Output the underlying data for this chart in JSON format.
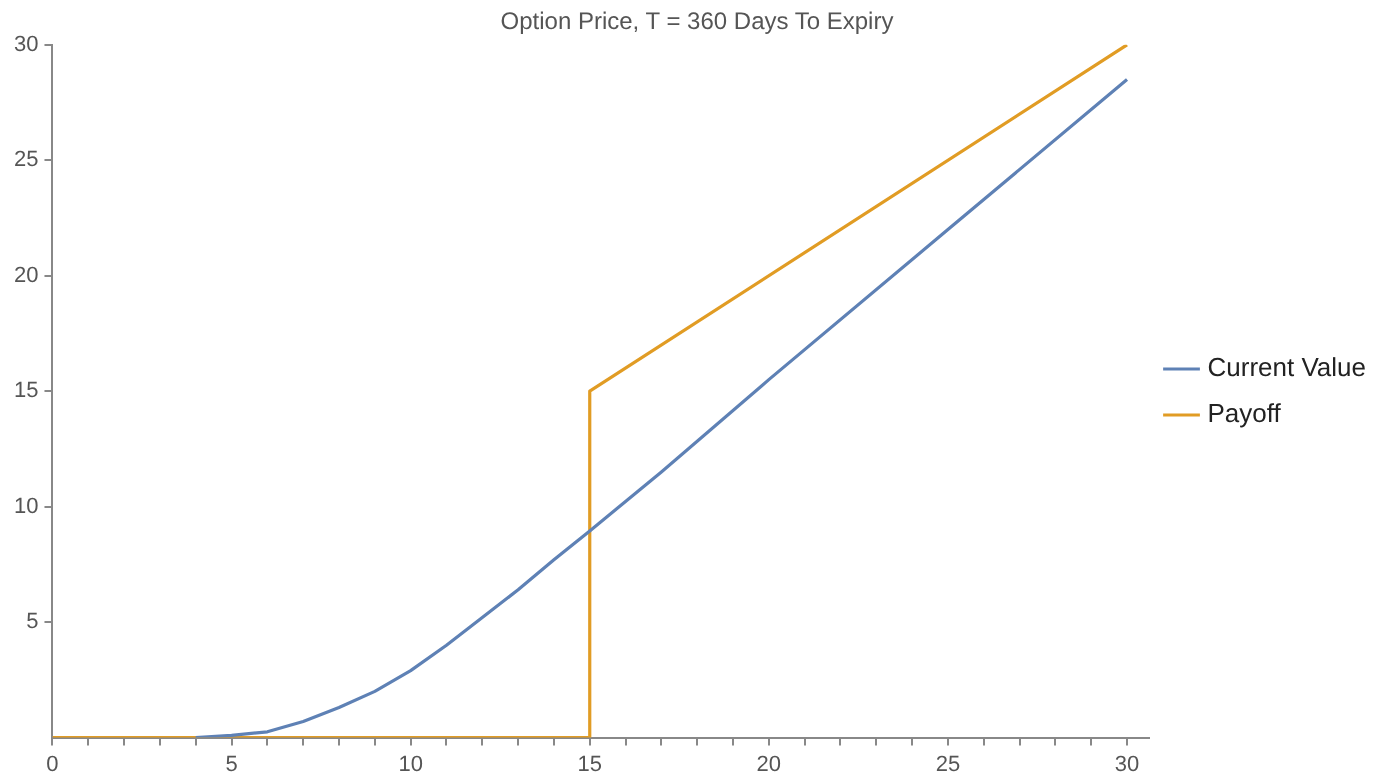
{
  "chart_data": {
    "type": "line",
    "title": "Option Price, T = 360 Days To Expiry",
    "series": [
      {
        "name": "Current Value",
        "color": "#5e81b5",
        "x": [
          4,
          5,
          6,
          7,
          8,
          9,
          10,
          11,
          12,
          13,
          14,
          15,
          17,
          20,
          25,
          30
        ],
        "values": [
          0,
          0.1,
          0.25,
          0.7,
          1.3,
          2.0,
          2.9,
          4.0,
          5.2,
          6.4,
          7.7,
          8.95,
          11.5,
          15.5,
          22.0,
          28.5
        ]
      },
      {
        "name": "Payoff",
        "color": "#e19c24",
        "x": [
          0,
          15,
          15,
          30
        ],
        "values": [
          0,
          0,
          15,
          30
        ]
      }
    ],
    "xlim": [
      0,
      30.6
    ],
    "ylim": [
      0,
      30
    ],
    "xticks": [
      0,
      {
        "value": 1,
        "label": null
      },
      {
        "value": 2,
        "label": null
      },
      {
        "value": 3,
        "label": null
      },
      {
        "value": 4,
        "label": null
      },
      5,
      {
        "value": 6,
        "label": null
      },
      {
        "value": 7,
        "label": null
      },
      {
        "value": 8,
        "label": null
      },
      {
        "value": 9,
        "label": null
      },
      10,
      {
        "value": 11,
        "label": null
      },
      {
        "value": 12,
        "label": null
      },
      {
        "value": 13,
        "label": null
      },
      {
        "value": 14,
        "label": null
      },
      15,
      {
        "value": 16,
        "label": null
      },
      {
        "value": 17,
        "label": null
      },
      {
        "value": 18,
        "label": null
      },
      {
        "value": 19,
        "label": null
      },
      20,
      {
        "value": 21,
        "label": null
      },
      {
        "value": 22,
        "label": null
      },
      {
        "value": 23,
        "label": null
      },
      {
        "value": 24,
        "label": null
      },
      25,
      {
        "value": 26,
        "label": null
      },
      {
        "value": 27,
        "label": null
      },
      {
        "value": 28,
        "label": null
      },
      {
        "value": 29,
        "label": null
      },
      30
    ],
    "yticks": [
      5,
      10,
      15,
      20,
      25,
      30
    ],
    "grid": false,
    "legend": "right",
    "marker": "none",
    "line_style": "solid"
  }
}
